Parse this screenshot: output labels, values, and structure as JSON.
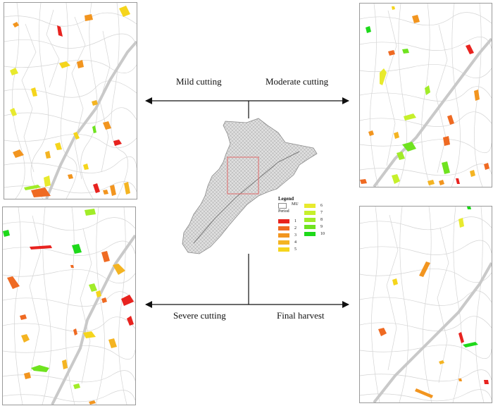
{
  "labels": {
    "mild": "Mild cutting",
    "moderate": "Moderate cutting",
    "severe": "Severe cutting",
    "final": "Final harvest"
  },
  "legend": {
    "title": "Legend",
    "mu_label": "MU",
    "period_label": "Period",
    "periods": [
      {
        "label": "1",
        "color": "#e8231f"
      },
      {
        "label": "2",
        "color": "#ef6a22"
      },
      {
        "label": "3",
        "color": "#f2951f"
      },
      {
        "label": "4",
        "color": "#f4b422"
      },
      {
        "label": "5",
        "color": "#f5d51c"
      },
      {
        "label": "6",
        "color": "#e8ea2e"
      },
      {
        "label": "7",
        "color": "#c6f02b"
      },
      {
        "label": "8",
        "color": "#a1ec28"
      },
      {
        "label": "9",
        "color": "#6fe31f"
      },
      {
        "label": "10",
        "color": "#1ed91a"
      }
    ]
  },
  "colors": {
    "mu_boundary": "#d6d6d6",
    "overview_frame": "#e06a6a",
    "arrow": "#111111"
  }
}
